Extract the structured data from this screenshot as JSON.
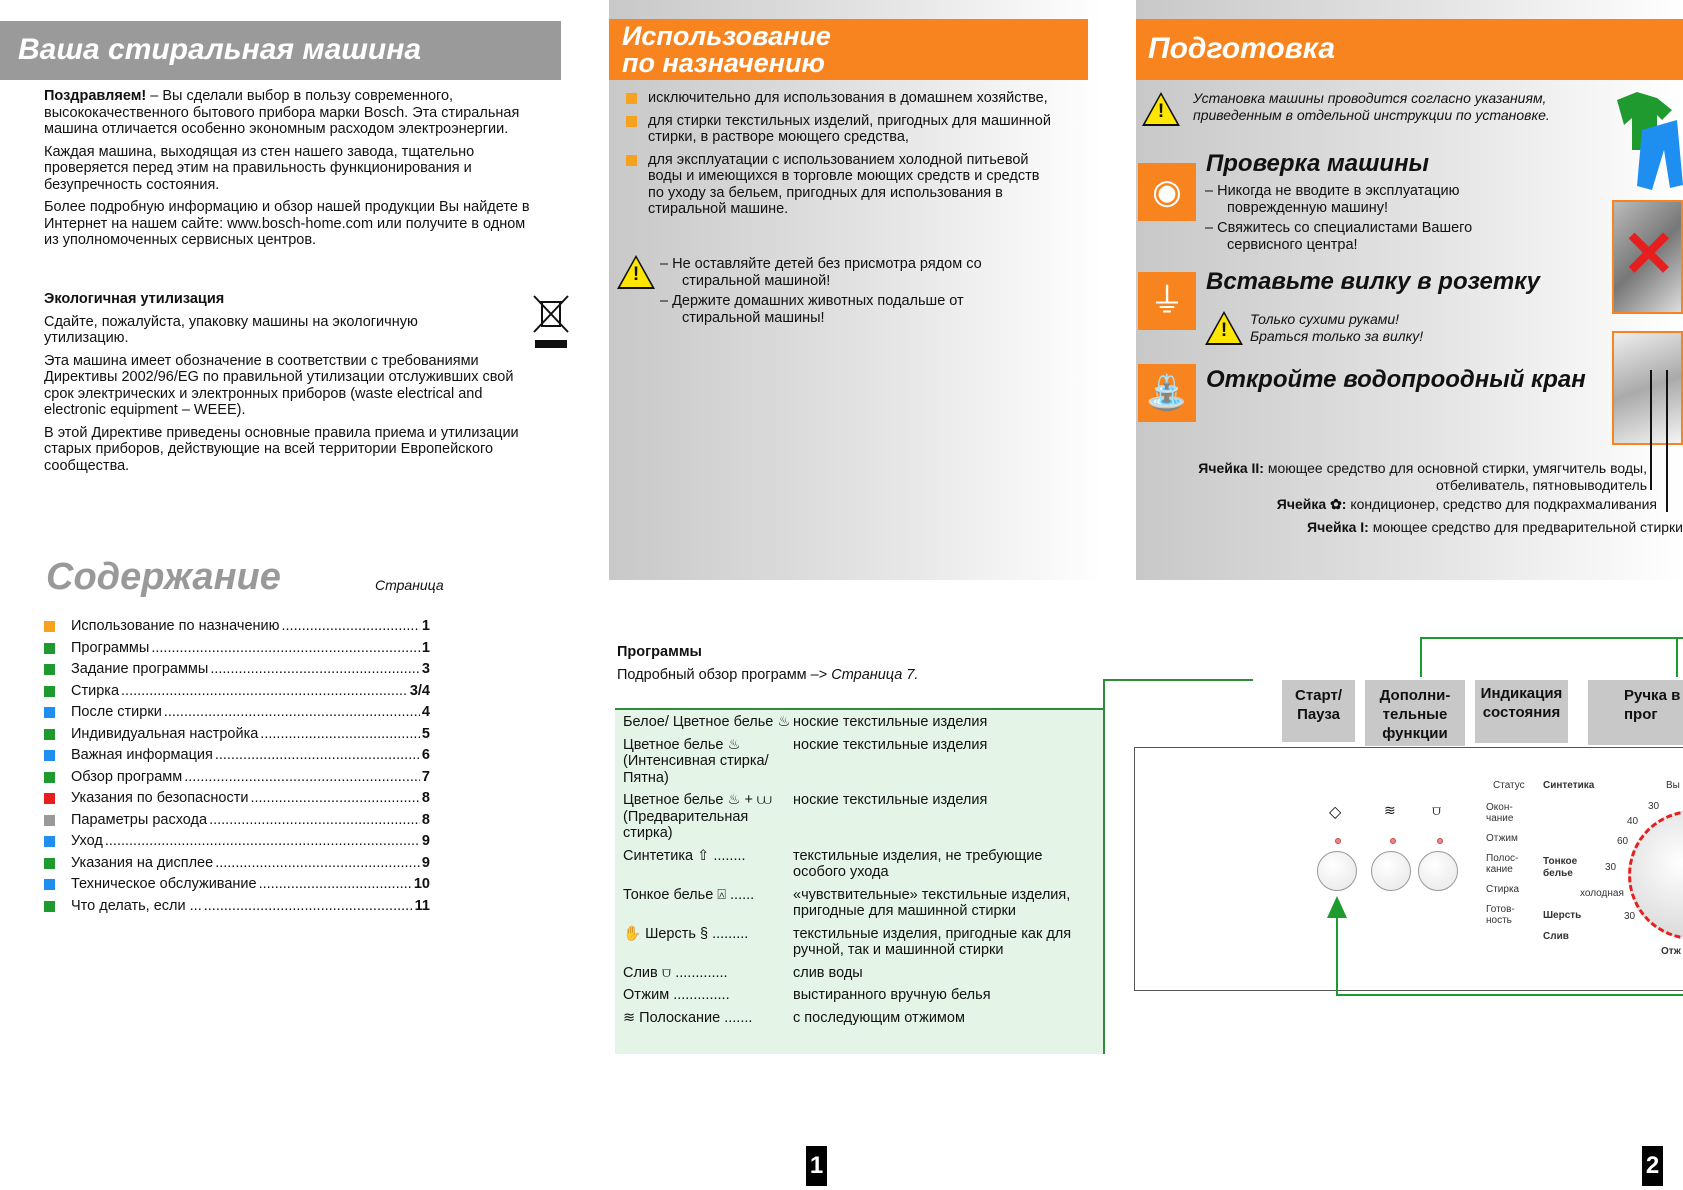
{
  "left": {
    "title": "Ваша стиральная машина",
    "intro_bold": "Поздравляем!",
    "intro_rest": " – Вы сделали выбор в пользу современного, высококачественного бытового прибора марки Bosch. Эта стиральная машина отличается особенно экономным расходом электроэнергии.",
    "para2": "Каждая машина, выходящая из стен нашего завода, тщательно проверяется перед этим на правильность функционирования и безупречность состояния.",
    "para3": "Более подробную информацию и обзор нашей продукции Вы найдете в Интернет на нашем сайте: www.bosch-home.com или получите в одном из уполномоченных сервисных центров.",
    "eco_title": "Экологичная утилизация",
    "eco1": "Сдайте, пожалуйста, упаковку машины на экологичную утилизацию.",
    "eco2": "Эта машина имеет обозначение в соответствии с требованиями Директивы 2002/96/EG по правильной утилизации отслуживших свой срок электрических и электронных приборов (waste electrical and electronic equipment – WEEE).",
    "eco3": "В этой Директиве приведены основные правила приема и утилизации старых приборов, действующие на всей территории Европейского сообщества.",
    "weee_icon": "crossed-bin-icon"
  },
  "toc": {
    "title": "Содержание",
    "page_label": "Страница",
    "items": [
      {
        "label": "Использование по назначению",
        "page": "1",
        "color": "#f7a21e"
      },
      {
        "label": "Программы",
        "page": "1",
        "color": "#1f9a2e"
      },
      {
        "label": "Задание программы",
        "page": "3",
        "color": "#1f9a2e"
      },
      {
        "label": "Стирка",
        "page": "3/4",
        "color": "#1f9a2e"
      },
      {
        "label": "После стирки",
        "page": "4",
        "color": "#1e8ff0"
      },
      {
        "label": "Индивидуальная настройка",
        "page": "5",
        "color": "#1f9a2e"
      },
      {
        "label": "Важная информация",
        "page": "6",
        "color": "#1e8ff0"
      },
      {
        "label": "Обзор программ",
        "page": "7",
        "color": "#1f9a2e"
      },
      {
        "label": "Указания по безопасности",
        "page": "8",
        "color": "#e81e1e"
      },
      {
        "label": "Параметры расхода",
        "page": "8",
        "color": "#999999"
      },
      {
        "label": "Уход",
        "page": "9",
        "color": "#1e8ff0"
      },
      {
        "label": "Указания на дисплее",
        "page": "9",
        "color": "#1f9a2e"
      },
      {
        "label": "Техническое обслуживание",
        "page": "10",
        "color": "#1e8ff0"
      },
      {
        "label": "Что делать, если ...",
        "page": "11",
        "color": "#1f9a2e"
      }
    ]
  },
  "usage": {
    "title_line1": "Использование",
    "title_line2": "по назначению",
    "items": [
      "исключительно для использования в домашнем хозяйстве,",
      "для стирки текстильных изделий, пригодных для машинной стирки, в растворе моющего средства,",
      "для эксплуатации с использованием холодной питьевой воды и имеющихся в торговле моющих средств и средств по уходу за бельем, пригодных для использования в стиральной машине."
    ],
    "warnings": [
      "Не оставляйте детей без присмотра рядом со стиральной машиной!",
      "Держите домашних животных подальше от стиральной машины!"
    ]
  },
  "programs": {
    "title": "Программы",
    "subtitle": "Подробный обзор программ –>",
    "subtitle_link": "Страница 7.",
    "rows": [
      {
        "name": "Белое/ Цветное белье ♨",
        "desc": "ноские текстильные изделия"
      },
      {
        "name": "Цветное белье ♨ (Интенсивная стирка/Пятна)",
        "desc": "ноские текстильные изделия"
      },
      {
        "name": "Цветное белье ♨ + ⩊ (Предварительная стирка)",
        "desc": "ноские текстильные изделия"
      },
      {
        "name": "Синтетика ⇧ ........",
        "desc": "текстильные изделия, не требующие особого ухода"
      },
      {
        "name": "Тонкое белье ⍓ ......",
        "desc": "«чувствительные» текстильные изделия, пригодные для машинной стирки"
      },
      {
        "name": "✋ Шерсть § .........",
        "desc": "текстильные изделия, пригодные как для ручной, так и машинной стирки"
      },
      {
        "name": "Слив ⩌ .............",
        "desc": "слив воды"
      },
      {
        "name": "Отжим ..............",
        "desc": "выстиранного вручную белья"
      },
      {
        "name": "≋ Полоскание .......",
        "desc": "с последующим отжимом"
      }
    ]
  },
  "prep": {
    "title": "Подготовка",
    "install_note": "Установка машины проводится согласно указаниям, приведенным в отдельной инструкции по установке.",
    "check_title": "Проверка машины",
    "check_items": [
      "Никогда не вводите в эксплуатацию поврежденную машину!",
      "Свяжитесь со специалистами Вашего сервисного центра!"
    ],
    "plug_title": "Вставьте вилку в розетку",
    "plug_warn1": "Только сухими руками!",
    "plug_warn2": "Браться только за вилку!",
    "tap_title": "Откройте водопроодный кран",
    "cell2_label": "Ячейка II:",
    "cell2_text": "моющее средство для основной стирки, умягчитель воды, отбеливатель, пятновыводитель",
    "cellf_label": "Ячейка ✿:",
    "cellf_text": "кондиционер, средство для подкрахмаливания",
    "cell1_label": "Ячейка I:",
    "cell1_text": "моющее средство для предварительной стирки"
  },
  "panel": {
    "labels": [
      "Старт/ Пауза",
      "Дополни- тельные функции",
      "Индикация состояния",
      "Ручка в прог"
    ],
    "status": "Статус",
    "status_items": [
      "Окон- чание",
      "Отжим",
      "Полос- кание",
      "Стирка",
      "Готов- ность"
    ],
    "dial": {
      "synth": "Синтетика",
      "t30a": "30",
      "t40": "40",
      "t60": "60",
      "fine": "Тонкое белье",
      "t30b": "30",
      "cold": "холодная",
      "wool": "Шерсть",
      "t30c": "30",
      "drain": "Слив",
      "off": "Вы",
      "spin": "Отж"
    }
  },
  "page_numbers": [
    "1",
    "2"
  ],
  "colors": {
    "orange": "#f7841e",
    "green": "#1f9a2e",
    "grey_header": "#999999"
  }
}
